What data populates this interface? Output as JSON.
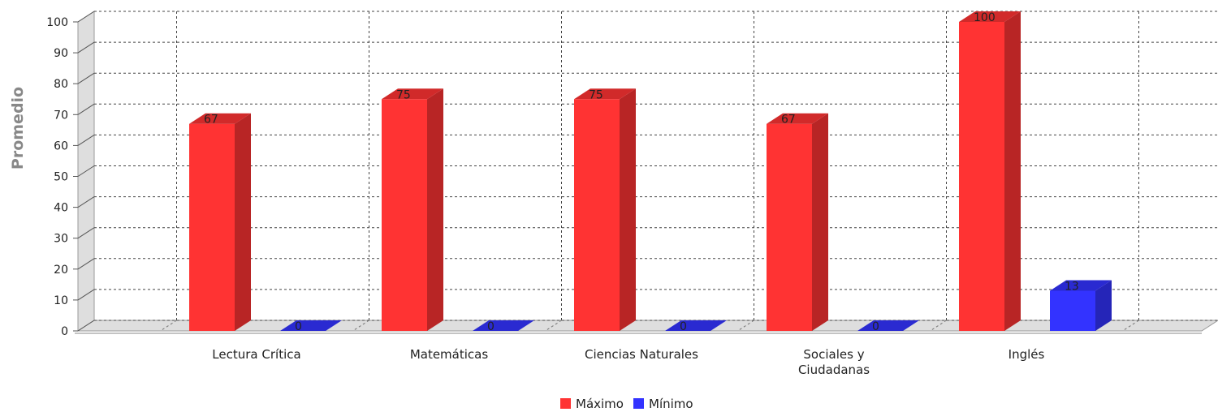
{
  "chart_data": {
    "type": "bar",
    "title": "",
    "xlabel": "",
    "ylabel": "Promedio",
    "ylim": [
      0,
      100
    ],
    "yticks": [
      "0",
      "10",
      "20",
      "30",
      "40",
      "50",
      "60",
      "70",
      "80",
      "90",
      "100"
    ],
    "categories": [
      "Lectura Crítica",
      "Matemáticas",
      "Ciencias Naturales",
      "Sociales y Ciudadanas",
      "Inglés"
    ],
    "series": [
      {
        "name": "Máximo",
        "color": "#ff3333",
        "values": [
          67,
          75,
          75,
          67,
          100
        ]
      },
      {
        "name": "Mínimo",
        "color": "#3333ff",
        "values": [
          0,
          0,
          0,
          0,
          13
        ]
      }
    ],
    "grid": true,
    "style": "3d",
    "legend_position": "bottom-center"
  }
}
